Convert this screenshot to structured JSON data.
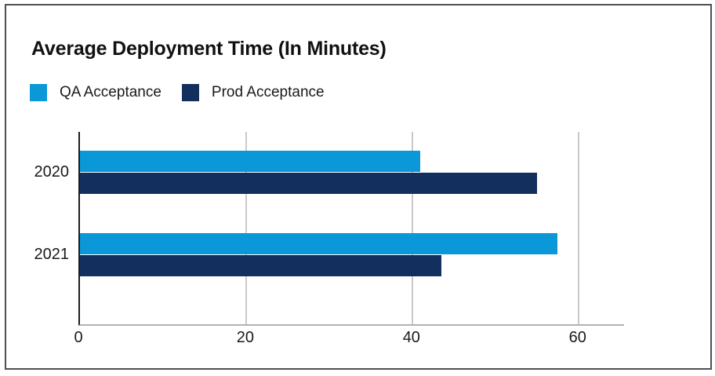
{
  "chart_data": {
    "type": "bar",
    "orientation": "horizontal",
    "title": "Average Deployment Time (In Minutes)",
    "categories": [
      "2020",
      "2021"
    ],
    "series": [
      {
        "name": "QA Acceptance",
        "color": "#0B98D8",
        "values": [
          41,
          57.5
        ]
      },
      {
        "name": "Prod Acceptance",
        "color": "#132F5E",
        "values": [
          55,
          43.5
        ]
      }
    ],
    "x_ticks": [
      0,
      20,
      40,
      60
    ],
    "xlim": [
      0,
      65.5
    ],
    "xlabel": "",
    "ylabel": "",
    "grid": "vertical-gridlines-only",
    "legend_position": "top-left"
  },
  "colors": {
    "qa_series": "#0B98D8",
    "prod_series": "#132F5E",
    "gridline": "#C9C9C9",
    "axis_line": "#1C1C1C",
    "baseline": "#B3B3B3",
    "frame_border": "#4F4F4F",
    "title_text": "#111111",
    "label_text": "#1A1A1A"
  }
}
